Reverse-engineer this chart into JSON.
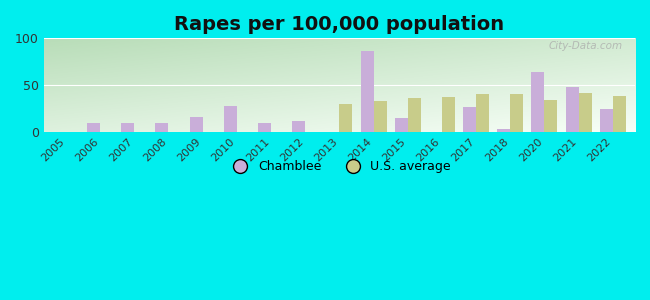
{
  "title": "Rapes per 100,000 population",
  "years": [
    2005,
    2006,
    2007,
    2008,
    2009,
    2010,
    2011,
    2012,
    2013,
    2014,
    2015,
    2016,
    2017,
    2018,
    2020,
    2021,
    2022
  ],
  "chamblee": [
    0,
    10,
    10,
    9,
    16,
    28,
    10,
    12,
    0,
    86,
    15,
    0,
    27,
    3,
    64,
    48,
    25
  ],
  "us_avg": [
    0,
    0,
    0,
    0,
    0,
    0,
    0,
    0,
    30,
    33,
    36,
    37,
    40,
    41,
    34,
    42,
    38
  ],
  "chamblee_color": "#c9aed9",
  "us_avg_color": "#c8cc8a",
  "bg_color_top_left": "#b8ddb8",
  "bg_color_bottom_right": "#f8fff8",
  "outer_bg": "#00eeee",
  "ylim": [
    0,
    100
  ],
  "yticks": [
    0,
    50,
    100
  ],
  "bar_width": 0.38,
  "title_fontsize": 14,
  "watermark": "City-Data.com",
  "legend_labels": [
    "Chamblee",
    "U.S. average"
  ]
}
